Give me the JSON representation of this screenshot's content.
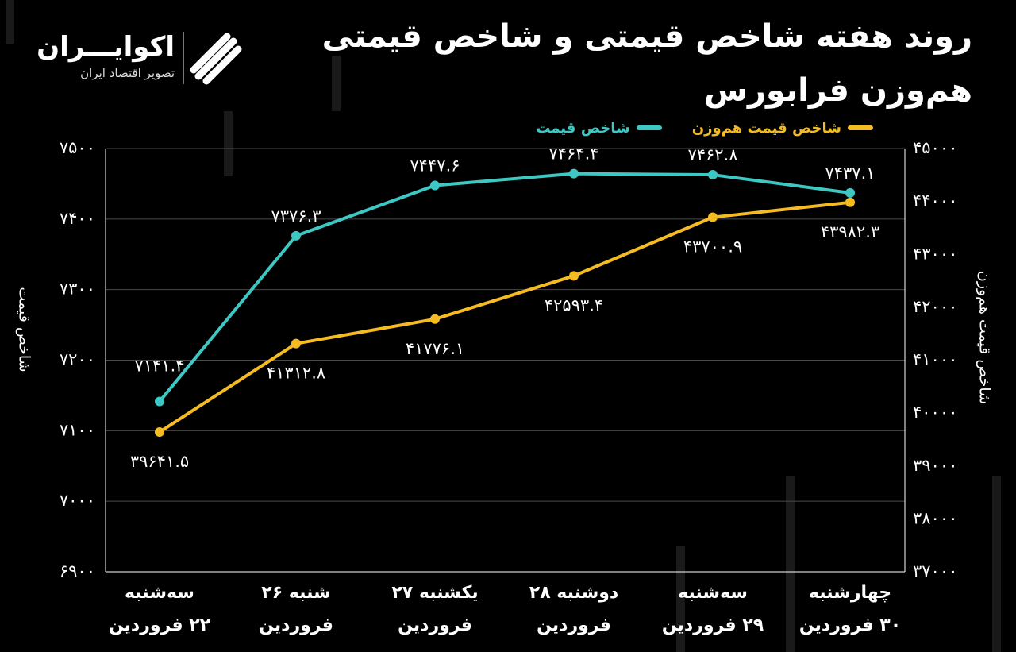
{
  "title": "روند هفته شاخص قیمتی و شاخص قیمتی هم‌وزن فرابورس",
  "logo": {
    "name": "اکوایـــران",
    "tagline": "تصویر اقتصاد ایران"
  },
  "colors": {
    "background": "#000000",
    "price_index": "#3ec8c4",
    "equal_weight_index": "#f5bb22",
    "grid": "#4a4a4a"
  },
  "chart_data": {
    "type": "line",
    "title": "روند هفته شاخص قیمتی و شاخص قیمتی هم‌وزن فرابورس",
    "categories": [
      [
        "سه‌شنبه",
        "۲۲ فروردین"
      ],
      [
        "شنبه ۲۶",
        "فروردین"
      ],
      [
        "یکشنبه ۲۷",
        "فروردین"
      ],
      [
        "دوشنبه ۲۸",
        "فروردین"
      ],
      [
        "سه‌شنبه",
        "۲۹ فروردین"
      ],
      [
        "چهارشنبه",
        "۳۰ فروردین"
      ]
    ],
    "series": [
      {
        "name": "شاخص قیمت",
        "axis": "left",
        "values": [
          7141.4,
          7376.3,
          7447.6,
          7464.4,
          7462.8,
          7437.1
        ],
        "labels": [
          "۷۱۴۱.۴",
          "۷۳۷۶.۳",
          "۷۴۴۷.۶",
          "۷۴۶۴.۴",
          "۷۴۶۲.۸",
          "۷۴۳۷.۱"
        ]
      },
      {
        "name": "شاخص قیمت هم‌وزن",
        "axis": "right",
        "values": [
          39641.5,
          41312.8,
          41776.1,
          42593.4,
          43700.9,
          43982.3
        ],
        "labels": [
          "۳۹۶۴۱.۵",
          "۴۱۳۱۲.۸",
          "۴۱۷۷۶.۱",
          "۴۲۵۹۳.۴",
          "۴۳۷۰۰.۹",
          "۴۳۹۸۲.۳"
        ]
      }
    ],
    "y_left": {
      "label": "شاخص قیمت",
      "range": [
        6900,
        7500
      ],
      "ticks": [
        "۶۹۰۰",
        "۷۰۰۰",
        "۷۱۰۰",
        "۷۲۰۰",
        "۷۳۰۰",
        "۷۴۰۰",
        "۷۵۰۰"
      ]
    },
    "y_right": {
      "label": "شاخص قیمت هم‌وزن",
      "range": [
        37000,
        45000
      ],
      "ticks": [
        "۳۷۰۰۰",
        "۳۸۰۰۰",
        "۳۹۰۰۰",
        "۴۰۰۰۰",
        "۴۱۰۰۰",
        "۴۲۰۰۰",
        "۴۳۰۰۰",
        "۴۴۰۰۰",
        "۴۵۰۰۰"
      ]
    },
    "grid": true,
    "legend": "top-right"
  }
}
